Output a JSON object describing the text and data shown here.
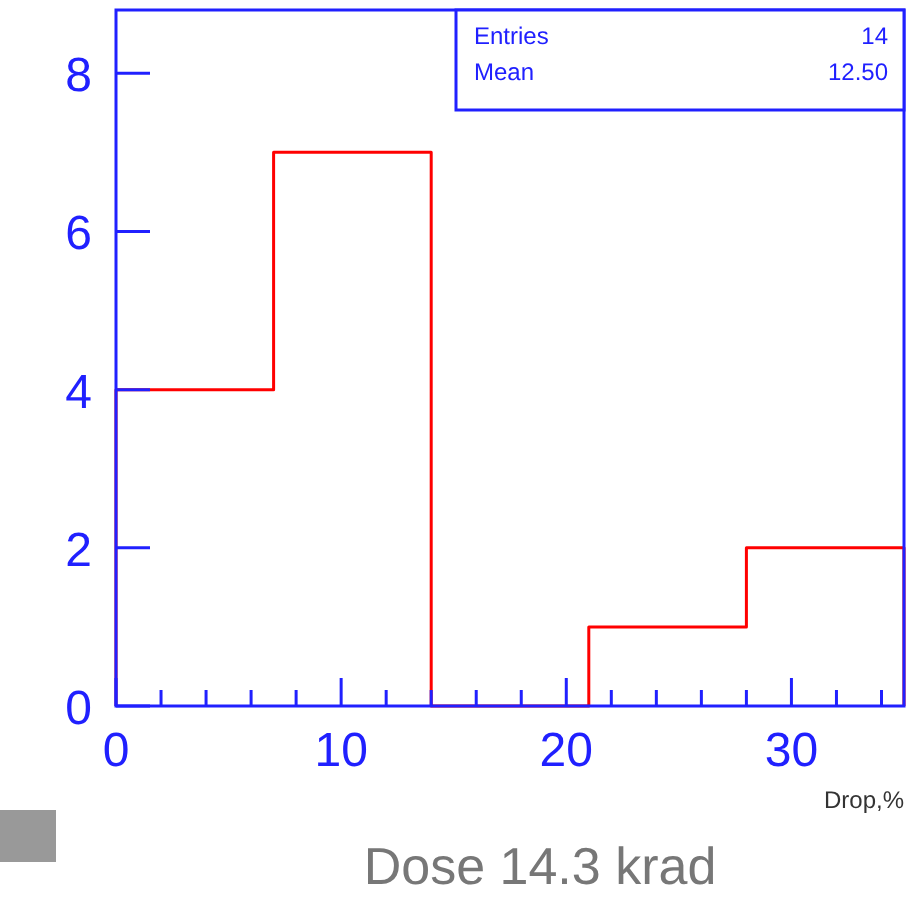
{
  "chart_data": {
    "type": "histogram",
    "title": "Dose 14.3 krad",
    "xlabel": "Drop,%",
    "bins": [
      0,
      7,
      14,
      21,
      28,
      35
    ],
    "values": [
      4,
      7,
      0,
      1,
      2
    ],
    "color": "#ff0000",
    "xlim": [
      0,
      35
    ],
    "ylim": [
      0,
      8.8
    ],
    "xticks": [
      0,
      {
        "value": 2,
        "label": null
      },
      {
        "value": 4,
        "label": null
      },
      {
        "value": 6,
        "label": null
      },
      {
        "value": 8,
        "label": null
      },
      10,
      {
        "value": 12,
        "label": null
      },
      {
        "value": 14,
        "label": null
      },
      {
        "value": 16,
        "label": null
      },
      {
        "value": 18,
        "label": null
      },
      20,
      {
        "value": 22,
        "label": null
      },
      {
        "value": 24,
        "label": null
      },
      {
        "value": 26,
        "label": null
      },
      {
        "value": 28,
        "label": null
      },
      30,
      {
        "value": 32,
        "label": null
      },
      {
        "value": 34,
        "label": null
      }
    ],
    "yticks": [
      0,
      2,
      4,
      6,
      8
    ],
    "annotations": [
      "Entries 14",
      "Mean 12.50"
    ]
  }
}
